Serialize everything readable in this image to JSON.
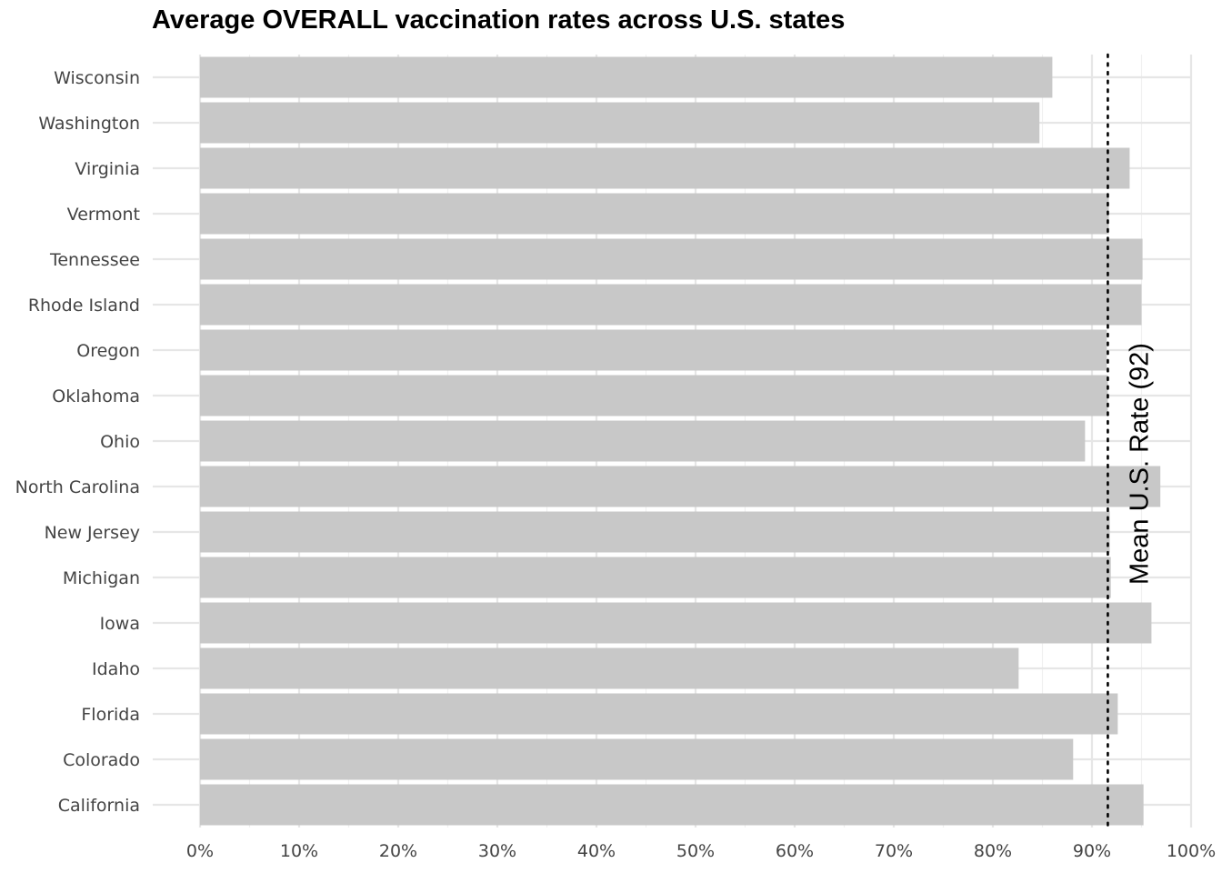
{
  "chart_data": {
    "type": "bar",
    "orientation": "horizontal",
    "title": "Average OVERALL vaccination rates across U.S. states",
    "xlabel": "",
    "ylabel": "",
    "categories": [
      "California",
      "Colorado",
      "Florida",
      "Idaho",
      "Iowa",
      "Michigan",
      "New Jersey",
      "North Carolina",
      "Ohio",
      "Oklahoma",
      "Oregon",
      "Rhode Island",
      "Tennessee",
      "Vermont",
      "Virginia",
      "Washington",
      "Wisconsin"
    ],
    "values": [
      95.2,
      88.1,
      92.6,
      82.6,
      96.0,
      91.9,
      91.8,
      96.9,
      89.3,
      91.6,
      91.5,
      95.0,
      95.1,
      91.7,
      93.8,
      84.7,
      86.0
    ],
    "xlim": [
      0,
      100
    ],
    "xticks": [
      0,
      10,
      20,
      30,
      40,
      50,
      60,
      70,
      80,
      90,
      100
    ],
    "xtick_labels": [
      "0%",
      "10%",
      "20%",
      "30%",
      "40%",
      "50%",
      "60%",
      "70%",
      "80%",
      "90%",
      "100%"
    ],
    "bar_color": "#c8c8c8",
    "grid": true,
    "reference_line": {
      "value": 91.6,
      "style": "dotted",
      "color": "#000000",
      "label": "Mean U.S. Rate (92)"
    }
  }
}
